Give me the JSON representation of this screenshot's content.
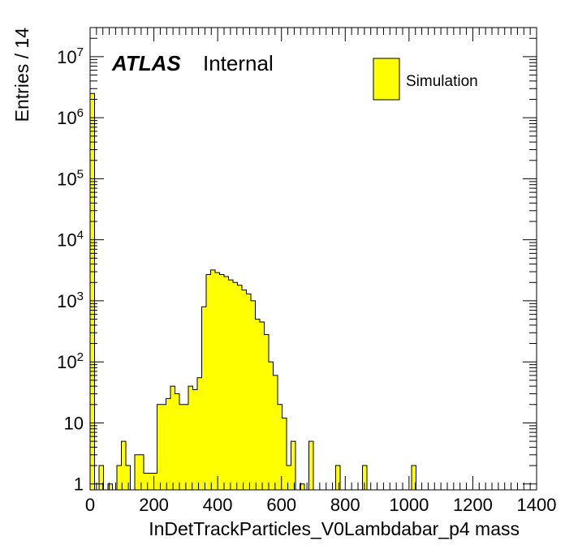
{
  "chart_data": {
    "type": "bar",
    "histogram": true,
    "log_y": true,
    "xlabel": "InDetTrackParticles_V0Lambdabar_p4 mass",
    "ylabel": "Entries / 14",
    "xlim": [
      0,
      1400
    ],
    "ylim": [
      0.8,
      30000000
    ],
    "bin_width": 14,
    "x_ticks": [
      "0",
      "200",
      "400",
      "600",
      "800",
      "1000",
      "1200",
      "1400"
    ],
    "y_ticks": [
      {
        "value": 1,
        "base": "1",
        "exp": ""
      },
      {
        "value": 10,
        "base": "10",
        "exp": ""
      },
      {
        "value": 100,
        "base": "10",
        "exp": "2"
      },
      {
        "value": 1000,
        "base": "10",
        "exp": "3"
      },
      {
        "value": 10000,
        "base": "10",
        "exp": "4"
      },
      {
        "value": 100000,
        "base": "10",
        "exp": "5"
      },
      {
        "value": 1000000,
        "base": "10",
        "exp": "6"
      },
      {
        "value": 10000000,
        "base": "10",
        "exp": "7"
      }
    ],
    "atlas_label": "ATLAS",
    "atlas_sublabel": "Internal",
    "series": [
      {
        "name": "Simulation",
        "color": "#ffff00",
        "edge_color": "#000000",
        "bin_edges": [
          0,
          14,
          28,
          42,
          56,
          70,
          84,
          98,
          112,
          126,
          140,
          154,
          168,
          182,
          196,
          210,
          224,
          238,
          252,
          266,
          280,
          294,
          308,
          322,
          336,
          350,
          364,
          378,
          392,
          406,
          420,
          434,
          448,
          462,
          476,
          490,
          504,
          518,
          532,
          546,
          560,
          574,
          588,
          602,
          616,
          630,
          644,
          658,
          672,
          686,
          700,
          714,
          728,
          742,
          756,
          770,
          784,
          798,
          812,
          826,
          840,
          854,
          868,
          882,
          896,
          910,
          924,
          938,
          952,
          966,
          980,
          994,
          1008,
          1022
        ],
        "values": [
          2500000,
          0,
          2,
          0,
          1,
          0,
          2,
          5,
          2,
          0,
          3,
          3,
          1.5,
          1.5,
          1.5,
          20,
          20,
          25,
          40,
          30,
          20,
          20,
          40,
          35,
          55,
          800,
          2700,
          3200,
          2900,
          2700,
          2500,
          2200,
          2000,
          1800,
          1500,
          1300,
          1000,
          500,
          450,
          280,
          100,
          60,
          20,
          12,
          2,
          5,
          0,
          1,
          0,
          5,
          0,
          0,
          0,
          0,
          0,
          2,
          0,
          0,
          0,
          0,
          0,
          2,
          0,
          0,
          0,
          0,
          0,
          0,
          0,
          0,
          0,
          0,
          2
        ]
      }
    ]
  }
}
